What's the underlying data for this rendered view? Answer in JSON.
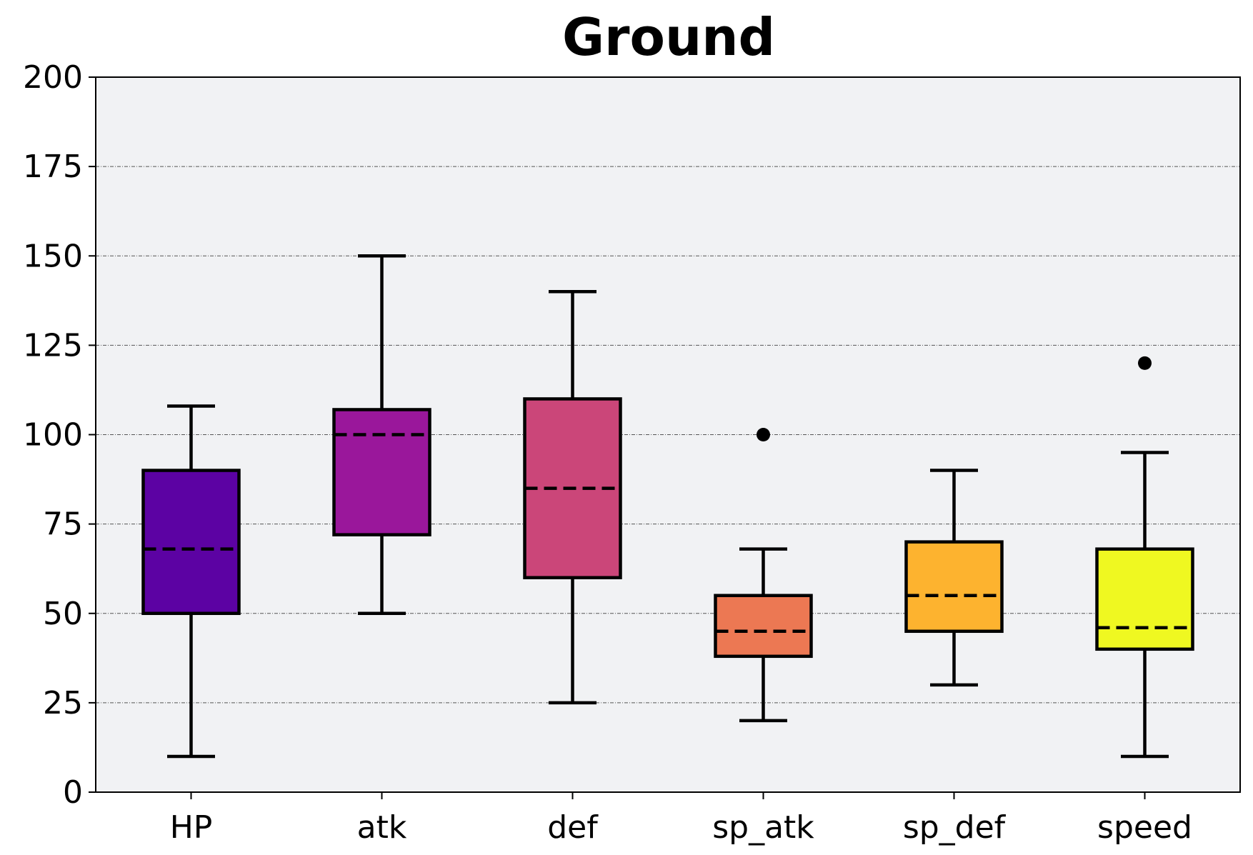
{
  "chart_data": {
    "type": "box",
    "title": "Ground",
    "xlabel": "",
    "ylabel": "",
    "categories": [
      "HP",
      "atk",
      "def",
      "sp_atk",
      "sp_def",
      "speed"
    ],
    "ylim": [
      0,
      200
    ],
    "yticks": [
      0,
      25,
      50,
      75,
      100,
      125,
      150,
      175,
      200
    ],
    "grid": "horizontal dashed",
    "legend": "none",
    "boxes": [
      {
        "category": "HP",
        "whisker_low": 10,
        "q1": 50,
        "median": 68,
        "q3": 90,
        "whisker_high": 108,
        "outliers": [],
        "color": "#5c02a3"
      },
      {
        "category": "atk",
        "whisker_low": 50,
        "q1": 72,
        "median": 100,
        "q3": 107,
        "whisker_high": 150,
        "outliers": [],
        "color": "#9a179b"
      },
      {
        "category": "def",
        "whisker_low": 25,
        "q1": 60,
        "median": 85,
        "q3": 110,
        "whisker_high": 140,
        "outliers": [],
        "color": "#cb4679"
      },
      {
        "category": "sp_atk",
        "whisker_low": 20,
        "q1": 38,
        "median": 45,
        "q3": 55,
        "whisker_high": 68,
        "outliers": [
          100
        ],
        "color": "#ec7853"
      },
      {
        "category": "sp_def",
        "whisker_low": 30,
        "q1": 45,
        "median": 55,
        "q3": 70,
        "whisker_high": 90,
        "outliers": [],
        "color": "#fdb32f"
      },
      {
        "category": "speed",
        "whisker_low": 10,
        "q1": 40,
        "median": 46,
        "q3": 68,
        "whisker_high": 95,
        "outliers": [
          120
        ],
        "color": "#eff821"
      }
    ],
    "plot_background": "#f1f2f4"
  }
}
